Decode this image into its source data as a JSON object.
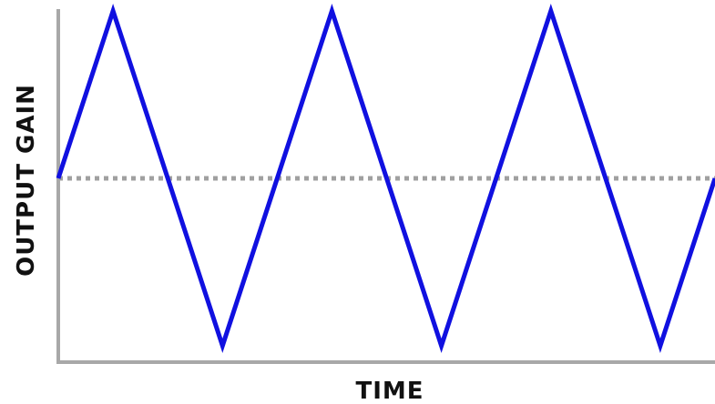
{
  "chart_data": {
    "type": "line",
    "title": "",
    "xlabel": "TIME",
    "ylabel": "OUTPUT GAIN",
    "x": [
      0,
      0.25,
      0.75,
      1.25,
      1.75,
      2.25,
      2.75,
      3.0
    ],
    "series": [
      {
        "values": [
          0,
          1,
          -1,
          1,
          -1,
          1,
          -1,
          0
        ]
      }
    ],
    "reference_line": {
      "y": 0,
      "style": "dotted"
    },
    "xlim": [
      0,
      3.0
    ],
    "ylim": [
      -1,
      1
    ],
    "grid": false,
    "legend": "none",
    "ticks": "none",
    "colors": {
      "series": "#1010e0",
      "reference": "#a0a0a0",
      "axis": "#a8a8a8"
    }
  }
}
